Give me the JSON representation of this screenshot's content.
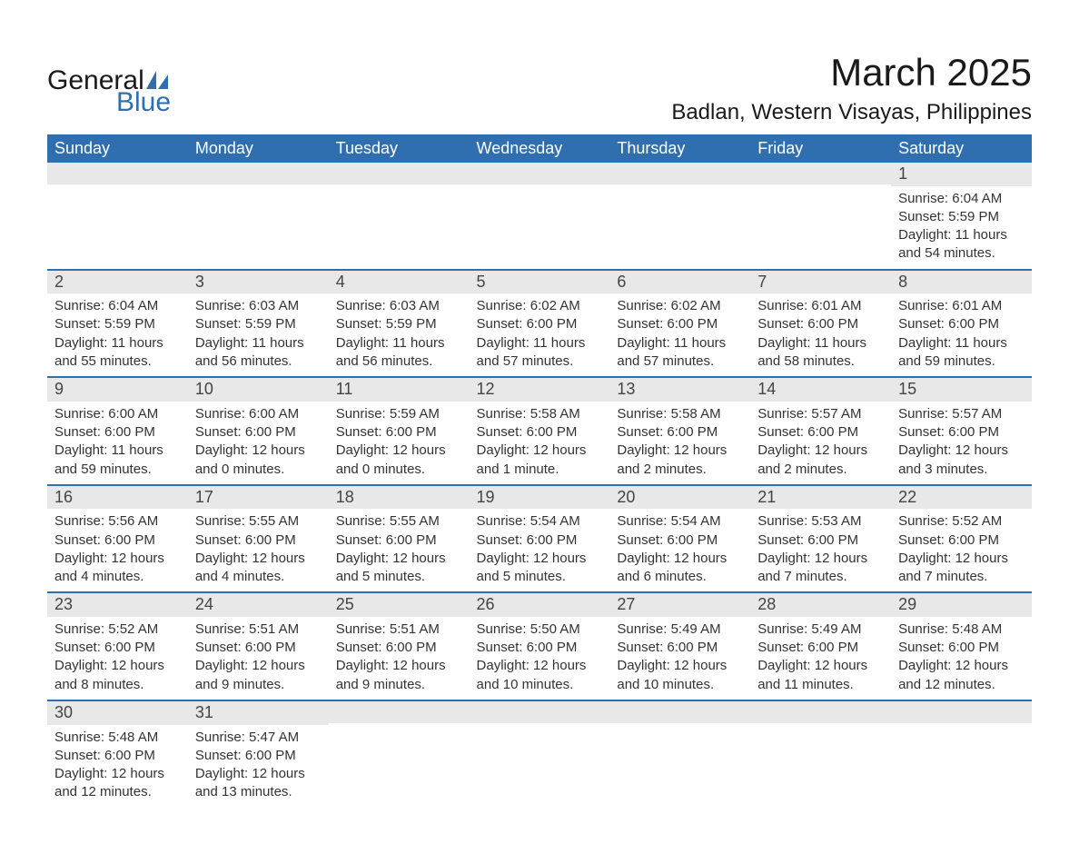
{
  "brand": {
    "part1": "General",
    "part2": "Blue",
    "color": "#2f6fb0"
  },
  "title": "March 2025",
  "location": "Badlan, Western Visayas, Philippines",
  "colors": {
    "header_bg": "#2f6fb0",
    "header_text": "#ffffff",
    "daynum_bg": "#e8e8e8",
    "row_divider": "#2f6fb0",
    "body_text": "#333333",
    "page_bg": "#ffffff"
  },
  "fonts": {
    "title_pt": 42,
    "location_pt": 24,
    "header_pt": 18,
    "daynum_pt": 18,
    "body_pt": 15
  },
  "layout": {
    "columns": 7,
    "rows": 6,
    "first_day_column_index": 6
  },
  "day_headers": [
    "Sunday",
    "Monday",
    "Tuesday",
    "Wednesday",
    "Thursday",
    "Friday",
    "Saturday"
  ],
  "weeks": [
    [
      null,
      null,
      null,
      null,
      null,
      null,
      {
        "n": "1",
        "sunrise": "Sunrise: 6:04 AM",
        "sunset": "Sunset: 5:59 PM",
        "day1": "Daylight: 11 hours",
        "day2": "and 54 minutes."
      }
    ],
    [
      {
        "n": "2",
        "sunrise": "Sunrise: 6:04 AM",
        "sunset": "Sunset: 5:59 PM",
        "day1": "Daylight: 11 hours",
        "day2": "and 55 minutes."
      },
      {
        "n": "3",
        "sunrise": "Sunrise: 6:03 AM",
        "sunset": "Sunset: 5:59 PM",
        "day1": "Daylight: 11 hours",
        "day2": "and 56 minutes."
      },
      {
        "n": "4",
        "sunrise": "Sunrise: 6:03 AM",
        "sunset": "Sunset: 5:59 PM",
        "day1": "Daylight: 11 hours",
        "day2": "and 56 minutes."
      },
      {
        "n": "5",
        "sunrise": "Sunrise: 6:02 AM",
        "sunset": "Sunset: 6:00 PM",
        "day1": "Daylight: 11 hours",
        "day2": "and 57 minutes."
      },
      {
        "n": "6",
        "sunrise": "Sunrise: 6:02 AM",
        "sunset": "Sunset: 6:00 PM",
        "day1": "Daylight: 11 hours",
        "day2": "and 57 minutes."
      },
      {
        "n": "7",
        "sunrise": "Sunrise: 6:01 AM",
        "sunset": "Sunset: 6:00 PM",
        "day1": "Daylight: 11 hours",
        "day2": "and 58 minutes."
      },
      {
        "n": "8",
        "sunrise": "Sunrise: 6:01 AM",
        "sunset": "Sunset: 6:00 PM",
        "day1": "Daylight: 11 hours",
        "day2": "and 59 minutes."
      }
    ],
    [
      {
        "n": "9",
        "sunrise": "Sunrise: 6:00 AM",
        "sunset": "Sunset: 6:00 PM",
        "day1": "Daylight: 11 hours",
        "day2": "and 59 minutes."
      },
      {
        "n": "10",
        "sunrise": "Sunrise: 6:00 AM",
        "sunset": "Sunset: 6:00 PM",
        "day1": "Daylight: 12 hours",
        "day2": "and 0 minutes."
      },
      {
        "n": "11",
        "sunrise": "Sunrise: 5:59 AM",
        "sunset": "Sunset: 6:00 PM",
        "day1": "Daylight: 12 hours",
        "day2": "and 0 minutes."
      },
      {
        "n": "12",
        "sunrise": "Sunrise: 5:58 AM",
        "sunset": "Sunset: 6:00 PM",
        "day1": "Daylight: 12 hours",
        "day2": "and 1 minute."
      },
      {
        "n": "13",
        "sunrise": "Sunrise: 5:58 AM",
        "sunset": "Sunset: 6:00 PM",
        "day1": "Daylight: 12 hours",
        "day2": "and 2 minutes."
      },
      {
        "n": "14",
        "sunrise": "Sunrise: 5:57 AM",
        "sunset": "Sunset: 6:00 PM",
        "day1": "Daylight: 12 hours",
        "day2": "and 2 minutes."
      },
      {
        "n": "15",
        "sunrise": "Sunrise: 5:57 AM",
        "sunset": "Sunset: 6:00 PM",
        "day1": "Daylight: 12 hours",
        "day2": "and 3 minutes."
      }
    ],
    [
      {
        "n": "16",
        "sunrise": "Sunrise: 5:56 AM",
        "sunset": "Sunset: 6:00 PM",
        "day1": "Daylight: 12 hours",
        "day2": "and 4 minutes."
      },
      {
        "n": "17",
        "sunrise": "Sunrise: 5:55 AM",
        "sunset": "Sunset: 6:00 PM",
        "day1": "Daylight: 12 hours",
        "day2": "and 4 minutes."
      },
      {
        "n": "18",
        "sunrise": "Sunrise: 5:55 AM",
        "sunset": "Sunset: 6:00 PM",
        "day1": "Daylight: 12 hours",
        "day2": "and 5 minutes."
      },
      {
        "n": "19",
        "sunrise": "Sunrise: 5:54 AM",
        "sunset": "Sunset: 6:00 PM",
        "day1": "Daylight: 12 hours",
        "day2": "and 5 minutes."
      },
      {
        "n": "20",
        "sunrise": "Sunrise: 5:54 AM",
        "sunset": "Sunset: 6:00 PM",
        "day1": "Daylight: 12 hours",
        "day2": "and 6 minutes."
      },
      {
        "n": "21",
        "sunrise": "Sunrise: 5:53 AM",
        "sunset": "Sunset: 6:00 PM",
        "day1": "Daylight: 12 hours",
        "day2": "and 7 minutes."
      },
      {
        "n": "22",
        "sunrise": "Sunrise: 5:52 AM",
        "sunset": "Sunset: 6:00 PM",
        "day1": "Daylight: 12 hours",
        "day2": "and 7 minutes."
      }
    ],
    [
      {
        "n": "23",
        "sunrise": "Sunrise: 5:52 AM",
        "sunset": "Sunset: 6:00 PM",
        "day1": "Daylight: 12 hours",
        "day2": "and 8 minutes."
      },
      {
        "n": "24",
        "sunrise": "Sunrise: 5:51 AM",
        "sunset": "Sunset: 6:00 PM",
        "day1": "Daylight: 12 hours",
        "day2": "and 9 minutes."
      },
      {
        "n": "25",
        "sunrise": "Sunrise: 5:51 AM",
        "sunset": "Sunset: 6:00 PM",
        "day1": "Daylight: 12 hours",
        "day2": "and 9 minutes."
      },
      {
        "n": "26",
        "sunrise": "Sunrise: 5:50 AM",
        "sunset": "Sunset: 6:00 PM",
        "day1": "Daylight: 12 hours",
        "day2": "and 10 minutes."
      },
      {
        "n": "27",
        "sunrise": "Sunrise: 5:49 AM",
        "sunset": "Sunset: 6:00 PM",
        "day1": "Daylight: 12 hours",
        "day2": "and 10 minutes."
      },
      {
        "n": "28",
        "sunrise": "Sunrise: 5:49 AM",
        "sunset": "Sunset: 6:00 PM",
        "day1": "Daylight: 12 hours",
        "day2": "and 11 minutes."
      },
      {
        "n": "29",
        "sunrise": "Sunrise: 5:48 AM",
        "sunset": "Sunset: 6:00 PM",
        "day1": "Daylight: 12 hours",
        "day2": "and 12 minutes."
      }
    ],
    [
      {
        "n": "30",
        "sunrise": "Sunrise: 5:48 AM",
        "sunset": "Sunset: 6:00 PM",
        "day1": "Daylight: 12 hours",
        "day2": "and 12 minutes."
      },
      {
        "n": "31",
        "sunrise": "Sunrise: 5:47 AM",
        "sunset": "Sunset: 6:00 PM",
        "day1": "Daylight: 12 hours",
        "day2": "and 13 minutes."
      },
      null,
      null,
      null,
      null,
      null
    ]
  ]
}
